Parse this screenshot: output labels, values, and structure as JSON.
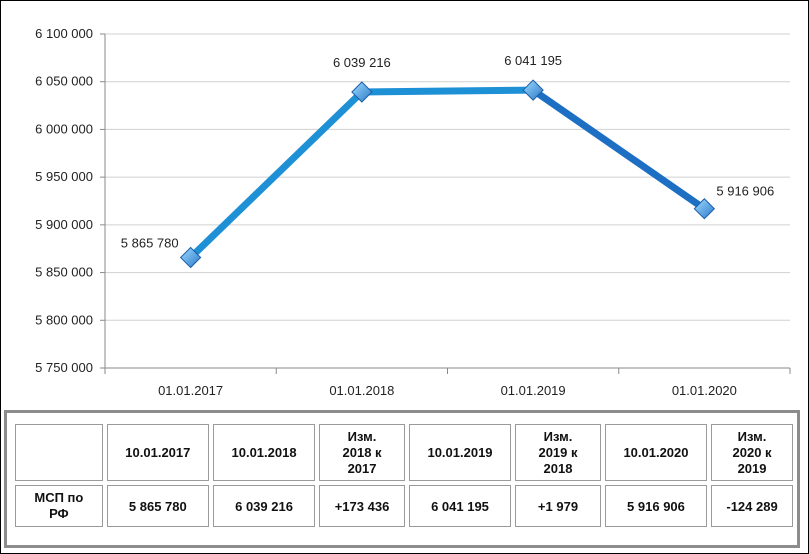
{
  "chart_data": {
    "type": "line",
    "categories": [
      "01.01.2017",
      "01.01.2018",
      "01.01.2019",
      "01.01.2020"
    ],
    "values": [
      5865780,
      6039216,
      6041195,
      5916906
    ],
    "value_labels": [
      "5 865 780",
      "6 039 216",
      "6 041 195",
      "5 916 906"
    ],
    "ylim": [
      5750000,
      6100000
    ],
    "yticks": [
      5750000,
      5800000,
      5850000,
      5900000,
      5950000,
      6000000,
      6050000,
      6100000
    ],
    "ytick_labels": [
      "5 750 000",
      "5 800 000",
      "5 850 000",
      "5 900 000",
      "5 950 000",
      "6 000 000",
      "6 050 000",
      "6 100 000"
    ],
    "grid": "y-major",
    "line_color": "#1e90d6",
    "marker_color": "#3aa0dd"
  },
  "table": {
    "headers": [
      "",
      "10.01.2017",
      "10.01.2018",
      "Изм.\n2018 к\n2017",
      "10.01.2019",
      "Изм.\n2019 к\n2018",
      "10.01.2020",
      "Изм.\n2020 к\n2019"
    ],
    "row": [
      "МСП по\nРФ",
      "5 865 780",
      "6 039 216",
      "+173 436",
      "6 041 195",
      "+1 979",
      "5 916 906",
      "-124 289"
    ]
  }
}
